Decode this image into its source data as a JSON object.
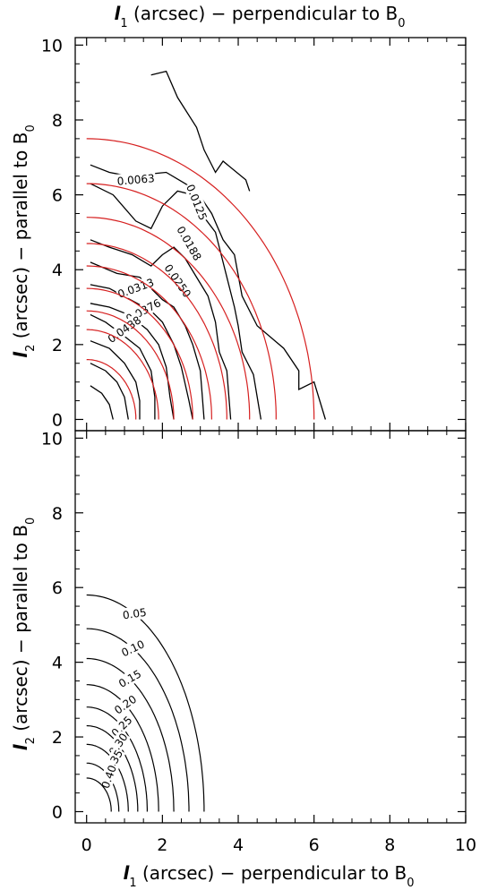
{
  "chart_data": [
    {
      "type": "contour",
      "panel": "top",
      "xlabel": {
        "symbol": "l",
        "sub": "1",
        "text": " (arcsec) − perpendicular to B",
        "tail_sub": "0"
      },
      "ylabel": {
        "symbol": "l",
        "sub": "2",
        "text": " (arcsec) − parallel to B",
        "tail_sub": "0"
      },
      "xlim": [
        -0.3,
        10
      ],
      "ylim": [
        -0.3,
        10.2
      ],
      "xticks": [
        0,
        2,
        4,
        6,
        8,
        10
      ],
      "yticks": [
        0,
        2,
        4,
        6,
        8,
        10
      ],
      "xtick_labels": [],
      "ytick_labels": [
        "0",
        "2",
        "4",
        "6",
        "8",
        "10"
      ],
      "series": [
        {
          "kind": "measured",
          "color": "#000000",
          "contours": [
            {
              "label": "0.0063",
              "label_at": [
                1.3,
                6.4
              ],
              "label_angle": -5,
              "points": [
                [
                  0.1,
                  6.8
                ],
                [
                  0.6,
                  6.6
                ],
                [
                  1.1,
                  6.5
                ],
                [
                  2.1,
                  6.6
                ],
                [
                  2.6,
                  6.3
                ],
                [
                  2.9,
                  6.1
                ],
                [
                  3.3,
                  5.5
                ],
                [
                  3.6,
                  4.8
                ],
                [
                  3.9,
                  4.4
                ],
                [
                  4.1,
                  3.3
                ],
                [
                  4.5,
                  2.5
                ],
                [
                  5.2,
                  1.9
                ],
                [
                  5.6,
                  1.3
                ],
                [
                  5.6,
                  0.8
                ],
                [
                  6.0,
                  1.0
                ],
                [
                  6.3,
                  0.0
                ]
              ]
            },
            {
              "label": "",
              "label_at": null,
              "label_angle": 0,
              "points": [
                [
                  1.7,
                  9.2
                ],
                [
                  2.1,
                  9.3
                ],
                [
                  2.4,
                  8.6
                ],
                [
                  2.9,
                  7.8
                ],
                [
                  3.1,
                  7.2
                ],
                [
                  3.4,
                  6.6
                ],
                [
                  3.6,
                  6.9
                ],
                [
                  4.2,
                  6.4
                ],
                [
                  4.3,
                  6.1
                ]
              ]
            },
            {
              "label": "0.0125",
              "label_at": [
                2.9,
                5.8
              ],
              "label_angle": 68,
              "points": [
                [
                  0.1,
                  6.3
                ],
                [
                  0.7,
                  6.0
                ],
                [
                  1.3,
                  5.3
                ],
                [
                  1.7,
                  5.1
                ],
                [
                  2.0,
                  5.7
                ],
                [
                  2.4,
                  6.1
                ],
                [
                  2.8,
                  6.0
                ],
                [
                  3.1,
                  5.4
                ],
                [
                  3.4,
                  5.0
                ],
                [
                  3.6,
                  4.2
                ],
                [
                  3.9,
                  3.0
                ],
                [
                  4.0,
                  2.5
                ],
                [
                  4.1,
                  1.8
                ],
                [
                  4.4,
                  1.2
                ],
                [
                  4.6,
                  0.0
                ]
              ]
            },
            {
              "label": "0.0188",
              "label_at": [
                2.7,
                4.7
              ],
              "label_angle": 60,
              "points": [
                [
                  0.1,
                  4.8
                ],
                [
                  0.6,
                  4.6
                ],
                [
                  1.2,
                  4.4
                ],
                [
                  1.7,
                  4.1
                ],
                [
                  2.0,
                  4.4
                ],
                [
                  2.3,
                  4.6
                ],
                [
                  2.6,
                  4.3
                ],
                [
                  2.9,
                  3.8
                ],
                [
                  3.2,
                  3.3
                ],
                [
                  3.4,
                  2.6
                ],
                [
                  3.5,
                  1.8
                ],
                [
                  3.7,
                  1.3
                ],
                [
                  3.8,
                  0.0
                ]
              ]
            },
            {
              "label": "0.0250",
              "label_at": [
                2.4,
                3.7
              ],
              "label_angle": 55,
              "points": [
                [
                  0.1,
                  4.2
                ],
                [
                  0.8,
                  3.9
                ],
                [
                  1.4,
                  3.8
                ],
                [
                  2.0,
                  3.2
                ],
                [
                  2.3,
                  3.0
                ],
                [
                  2.6,
                  2.5
                ],
                [
                  2.8,
                  2.0
                ],
                [
                  3.0,
                  1.3
                ],
                [
                  3.1,
                  0.0
                ]
              ]
            },
            {
              "label": "0.0313",
              "label_at": [
                1.3,
                3.5
              ],
              "label_angle": -20,
              "points": [
                [
                  0.1,
                  3.6
                ],
                [
                  0.6,
                  3.5
                ],
                [
                  1.7,
                  2.9
                ],
                [
                  2.0,
                  2.6
                ],
                [
                  2.3,
                  2.0
                ],
                [
                  2.5,
                  1.4
                ],
                [
                  2.7,
                  0.5
                ],
                [
                  2.8,
                  0.0
                ]
              ]
            },
            {
              "label": "0.0376",
              "label_at": [
                1.5,
                2.9
              ],
              "label_angle": -28,
              "points": [
                [
                  0.1,
                  3.1
                ],
                [
                  0.6,
                  3.0
                ],
                [
                  1.1,
                  2.8
                ],
                [
                  1.6,
                  2.4
                ],
                [
                  1.9,
                  2.0
                ],
                [
                  2.1,
                  1.4
                ],
                [
                  2.2,
                  0.6
                ],
                [
                  2.3,
                  0.0
                ]
              ]
            },
            {
              "label": "0.0438",
              "label_at": [
                1.0,
                2.4
              ],
              "label_angle": -35,
              "points": [
                [
                  0.1,
                  2.8
                ],
                [
                  0.5,
                  2.6
                ],
                [
                  0.9,
                  2.3
                ],
                [
                  1.4,
                  1.9
                ],
                [
                  1.7,
                  1.3
                ],
                [
                  1.8,
                  0.6
                ],
                [
                  1.8,
                  0.0
                ]
              ]
            },
            {
              "label": "",
              "label_at": null,
              "label_angle": 0,
              "points": [
                [
                  0.1,
                  2.1
                ],
                [
                  0.6,
                  1.9
                ],
                [
                  1.0,
                  1.5
                ],
                [
                  1.3,
                  1.0
                ],
                [
                  1.4,
                  0.5
                ],
                [
                  1.4,
                  0.0
                ]
              ]
            },
            {
              "label": "",
              "label_at": null,
              "label_angle": 0,
              "points": [
                [
                  0.1,
                  1.5
                ],
                [
                  0.5,
                  1.3
                ],
                [
                  0.8,
                  1.0
                ],
                [
                  1.0,
                  0.6
                ],
                [
                  1.1,
                  0.0
                ]
              ]
            },
            {
              "label": "",
              "label_at": null,
              "label_angle": 0,
              "points": [
                [
                  0.1,
                  0.9
                ],
                [
                  0.4,
                  0.7
                ],
                [
                  0.6,
                  0.4
                ],
                [
                  0.7,
                  0.0
                ]
              ]
            }
          ]
        },
        {
          "kind": "model",
          "color": "#d62020",
          "ellipses": [
            {
              "a": 6.0,
              "b": 7.5
            },
            {
              "a": 5.0,
              "b": 6.3
            },
            {
              "a": 4.3,
              "b": 5.4
            },
            {
              "a": 3.7,
              "b": 4.7
            },
            {
              "a": 3.3,
              "b": 4.1
            },
            {
              "a": 2.8,
              "b": 3.5
            },
            {
              "a": 2.3,
              "b": 2.9
            },
            {
              "a": 1.9,
              "b": 2.4
            },
            {
              "a": 1.3,
              "b": 1.6
            }
          ]
        }
      ]
    },
    {
      "type": "contour",
      "panel": "bottom",
      "xlabel": {
        "symbol": "l",
        "sub": "1",
        "text": " (arcsec) − perpendicular to B",
        "tail_sub": "0"
      },
      "ylabel": {
        "symbol": "l",
        "sub": "2",
        "text": " (arcsec) − parallel to B",
        "tail_sub": "0"
      },
      "xlim": [
        -0.3,
        10
      ],
      "ylim": [
        -0.3,
        10.2
      ],
      "xticks": [
        0,
        2,
        4,
        6,
        8,
        10
      ],
      "yticks": [
        0,
        2,
        4,
        6,
        8,
        10
      ],
      "xtick_labels": [
        "0",
        "2",
        "4",
        "6",
        "8",
        "10"
      ],
      "ytick_labels": [
        "0",
        "2",
        "4",
        "6",
        "8",
        "10"
      ],
      "series": [
        {
          "kind": "model",
          "color": "#000000",
          "ellipses": [
            {
              "a": 3.1,
              "b": 5.8,
              "label": "0.05",
              "label_angle": -8
            },
            {
              "a": 2.7,
              "b": 4.9,
              "label": "0.10",
              "label_angle": -25
            },
            {
              "a": 2.3,
              "b": 4.1,
              "label": "0.15",
              "label_angle": -30
            },
            {
              "a": 1.9,
              "b": 3.4,
              "label": "0.20",
              "label_angle": -35
            },
            {
              "a": 1.6,
              "b": 2.8,
              "label": "0.25",
              "label_angle": -45
            },
            {
              "a": 1.35,
              "b": 2.3,
              "label": "0.30",
              "label_angle": -55
            },
            {
              "a": 1.1,
              "b": 1.8,
              "label": "0.35",
              "label_angle": -60
            },
            {
              "a": 0.85,
              "b": 1.3,
              "label": "0.40",
              "label_angle": -70
            },
            {
              "a": 0.65,
              "b": 0.9,
              "label": "",
              "label_angle": 0
            }
          ]
        }
      ]
    }
  ]
}
